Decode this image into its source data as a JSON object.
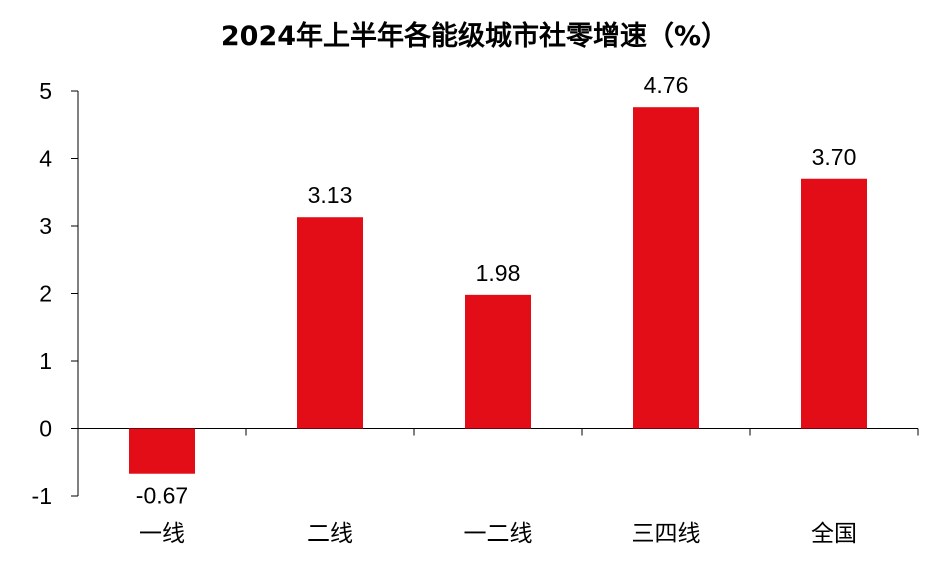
{
  "chart_data": {
    "type": "bar",
    "title": "2024年上半年各能级城市社零增速（%）",
    "categories": [
      "一线",
      "二线",
      "一二线",
      "三四线",
      "全国"
    ],
    "values": [
      -0.67,
      3.13,
      1.98,
      4.76,
      3.7
    ],
    "data_labels": [
      "-0.67",
      "3.13",
      "1.98",
      "4.76",
      "3.70"
    ],
    "yticks": [
      "5",
      "4",
      "3",
      "2",
      "1",
      "0",
      "-1"
    ],
    "ylim": [
      -1,
      5
    ],
    "grid": false,
    "legend": "none",
    "bar_color": "#e30d17",
    "xlabel": "",
    "ylabel": ""
  }
}
